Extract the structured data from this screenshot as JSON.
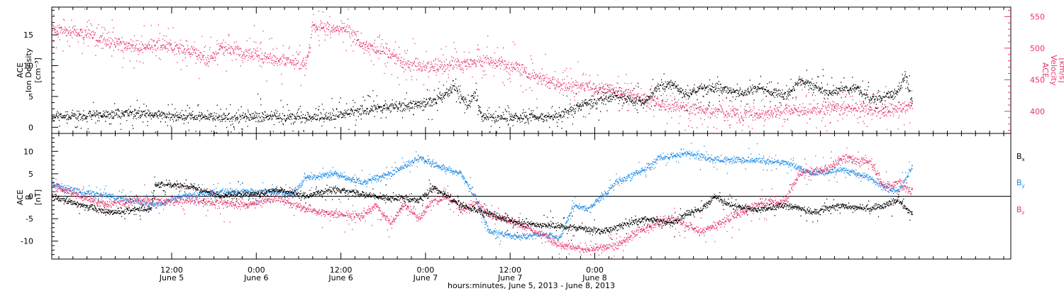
{
  "colors": {
    "black": "#000000",
    "pink": "#e8336b",
    "blue": "#1a8ae6"
  },
  "chart_data": [
    {
      "type": "scatter",
      "panel": "top",
      "ylabel_lines": [
        "ACE",
        "Ion Density",
        "[cm⁻³]"
      ],
      "y2label_lines": [
        "ACE",
        "Velocity",
        "[km/s]"
      ],
      "yticks": [
        "0",
        "5",
        "10",
        "15"
      ],
      "y2ticks": [
        "400",
        "450",
        "500",
        "550"
      ],
      "ylim": [
        -1,
        19.5
      ],
      "y2lim": [
        365,
        565
      ],
      "series": [
        {
          "key": "density",
          "color": "pink_left_axis_black",
          "axis": "left",
          "noise": 0.6,
          "scatter_prob": 0.25,
          "points": [
            [
              0,
              1.7
            ],
            [
              6,
              1.8
            ],
            [
              12,
              2.3
            ],
            [
              18,
              1.8
            ],
            [
              24,
              1.5
            ],
            [
              30,
              1.7
            ],
            [
              36,
              1.6
            ],
            [
              40,
              1.5
            ],
            [
              42,
              2.5
            ],
            [
              46,
              3.0
            ],
            [
              50,
              3.5
            ],
            [
              54,
              4.0
            ],
            [
              57,
              6.5
            ],
            [
              59,
              3.5
            ],
            [
              60,
              5.5
            ],
            [
              61,
              1.5
            ],
            [
              66,
              1.5
            ],
            [
              70,
              1.7
            ],
            [
              72,
              2.0
            ],
            [
              76,
              4.0
            ],
            [
              80,
              5.0
            ],
            [
              84,
              4.0
            ],
            [
              86,
              6.5
            ],
            [
              88,
              7.0
            ],
            [
              90,
              5.0
            ],
            [
              92,
              6.5
            ],
            [
              96,
              6.0
            ],
            [
              98,
              5.5
            ],
            [
              100,
              6.5
            ],
            [
              104,
              5.0
            ],
            [
              106,
              7.5
            ],
            [
              110,
              5.5
            ],
            [
              114,
              6.5
            ],
            [
              116,
              4.5
            ],
            [
              118,
              5.0
            ],
            [
              120,
              5.5
            ],
            [
              121,
              8.5
            ],
            [
              122,
              4.0
            ]
          ]
        },
        {
          "key": "velocity",
          "axis": "right",
          "noise": 8,
          "scatter_prob": 0.3,
          "points": [
            [
              0,
              530
            ],
            [
              4,
              525
            ],
            [
              8,
              510
            ],
            [
              12,
              500
            ],
            [
              15,
              505
            ],
            [
              20,
              495
            ],
            [
              22,
              480
            ],
            [
              24,
              500
            ],
            [
              28,
              490
            ],
            [
              32,
              480
            ],
            [
              36,
              475
            ],
            [
              37,
              535
            ],
            [
              40,
              530
            ],
            [
              42,
              530
            ],
            [
              44,
              505
            ],
            [
              48,
              490
            ],
            [
              50,
              475
            ],
            [
              54,
              470
            ],
            [
              58,
              475
            ],
            [
              62,
              480
            ],
            [
              66,
              470
            ],
            [
              68,
              455
            ],
            [
              72,
              440
            ],
            [
              76,
              440
            ],
            [
              80,
              430
            ],
            [
              84,
              420
            ],
            [
              86,
              410
            ],
            [
              90,
              405
            ],
            [
              94,
              400
            ],
            [
              98,
              395
            ],
            [
              100,
              395
            ],
            [
              104,
              400
            ],
            [
              106,
              400
            ],
            [
              110,
              405
            ],
            [
              114,
              405
            ],
            [
              118,
              400
            ],
            [
              122,
              410
            ]
          ]
        }
      ]
    },
    {
      "type": "scatter",
      "panel": "bottom",
      "ylabel_lines": [
        "ACE",
        "B",
        "[nT]"
      ],
      "yticks": [
        "-10",
        "-5",
        "0",
        "5",
        "10"
      ],
      "ylim": [
        -14,
        14
      ],
      "zero_line": true,
      "series": [
        {
          "name": "Bx",
          "label_main": "B",
          "label_sub": "x",
          "key": "bx",
          "noise": 0.6,
          "scatter_prob": 0.12,
          "points": [
            [
              0,
              0
            ],
            [
              4,
              -2
            ],
            [
              8,
              -3.5
            ],
            [
              12,
              -3.0
            ],
            [
              14,
              -3.0
            ],
            [
              14.5,
              2.5
            ],
            [
              18,
              2.5
            ],
            [
              20,
              2.0
            ],
            [
              24,
              0
            ],
            [
              28,
              0.5
            ],
            [
              30,
              0.5
            ],
            [
              32,
              1.5
            ],
            [
              36,
              0
            ],
            [
              40,
              1.5
            ],
            [
              44,
              0.5
            ],
            [
              48,
              -0.5
            ],
            [
              50,
              -0.5
            ],
            [
              52,
              -1
            ],
            [
              54,
              2.0
            ],
            [
              56,
              0
            ],
            [
              58,
              -2
            ],
            [
              60,
              -3
            ],
            [
              62,
              -4
            ],
            [
              66,
              -6
            ],
            [
              70,
              -6.5
            ],
            [
              74,
              -7
            ],
            [
              78,
              -8
            ],
            [
              80,
              -7
            ],
            [
              84,
              -5
            ],
            [
              86,
              -5.5
            ],
            [
              88,
              -6
            ],
            [
              90,
              -4
            ],
            [
              92,
              -3
            ],
            [
              94,
              0
            ],
            [
              96,
              -2
            ],
            [
              100,
              -3
            ],
            [
              104,
              -2
            ],
            [
              108,
              -3.5
            ],
            [
              112,
              -2
            ],
            [
              116,
              -3
            ],
            [
              118,
              -2
            ],
            [
              120,
              -1
            ],
            [
              122,
              -4
            ]
          ]
        },
        {
          "name": "By",
          "label_main": "B",
          "label_sub": "y",
          "key": "by",
          "noise": 0.6,
          "scatter_prob": 0.12,
          "points": [
            [
              0,
              2.5
            ],
            [
              4,
              1.0
            ],
            [
              8,
              0
            ],
            [
              12,
              -1
            ],
            [
              14,
              -2
            ],
            [
              16,
              -1.5
            ],
            [
              18,
              0
            ],
            [
              24,
              1
            ],
            [
              30,
              1.0
            ],
            [
              34,
              0.5
            ],
            [
              36,
              4
            ],
            [
              40,
              5
            ],
            [
              44,
              3
            ],
            [
              48,
              5
            ],
            [
              52,
              8.5
            ],
            [
              56,
              6
            ],
            [
              58,
              5
            ],
            [
              60,
              0
            ],
            [
              62,
              -8
            ],
            [
              66,
              -9
            ],
            [
              70,
              -8.5
            ],
            [
              72,
              -9.5
            ],
            [
              74,
              -2
            ],
            [
              76,
              -3
            ],
            [
              80,
              3
            ],
            [
              84,
              6
            ],
            [
              86,
              8.5
            ],
            [
              90,
              9.5
            ],
            [
              94,
              8
            ],
            [
              96,
              8
            ],
            [
              100,
              8
            ],
            [
              104,
              7.5
            ],
            [
              108,
              5
            ],
            [
              112,
              6
            ],
            [
              116,
              4
            ],
            [
              118,
              2
            ],
            [
              120,
              1
            ],
            [
              122,
              6.5
            ]
          ]
        },
        {
          "name": "Bz",
          "label_main": "B",
          "label_sub": "z",
          "key": "bz",
          "noise": 0.8,
          "scatter_prob": 0.15,
          "points": [
            [
              0,
              2.5
            ],
            [
              4,
              0
            ],
            [
              8,
              -2
            ],
            [
              12,
              -1
            ],
            [
              16,
              -1
            ],
            [
              20,
              -1
            ],
            [
              24,
              -1.5
            ],
            [
              28,
              -2
            ],
            [
              30,
              -1
            ],
            [
              32,
              -0.5
            ],
            [
              36,
              -3
            ],
            [
              40,
              -4
            ],
            [
              44,
              -4.5
            ],
            [
              46,
              -2
            ],
            [
              48,
              -6
            ],
            [
              50,
              -2
            ],
            [
              52,
              -5
            ],
            [
              54,
              -1
            ],
            [
              56,
              0
            ],
            [
              58,
              -3
            ],
            [
              60,
              -1.5
            ],
            [
              62,
              -4
            ],
            [
              66,
              -6
            ],
            [
              70,
              -9
            ],
            [
              72,
              -11
            ],
            [
              76,
              -12
            ],
            [
              80,
              -11
            ],
            [
              84,
              -7
            ],
            [
              88,
              -5
            ],
            [
              90,
              -6.5
            ],
            [
              92,
              -8
            ],
            [
              96,
              -5
            ],
            [
              100,
              -2
            ],
            [
              104,
              -1
            ],
            [
              106,
              5
            ],
            [
              110,
              6
            ],
            [
              112,
              8.5
            ],
            [
              116,
              7.5
            ],
            [
              118,
              2
            ],
            [
              120,
              3
            ],
            [
              122,
              1
            ]
          ]
        }
      ]
    }
  ],
  "x_axis": {
    "tick_top": [
      "12:00",
      "0:00",
      "12:00",
      "0:00",
      "12:00",
      "0:00"
    ],
    "tick_bottom": [
      "June 5",
      "June 6",
      "June 6",
      "June 7",
      "June 7",
      "June 8"
    ],
    "xlabel": "hours:minutes, June  5, 2013 - June  8, 2013",
    "hours_start": "June 4 19:00",
    "xlim_hours": [
      0,
      136
    ],
    "tick_hours": [
      17,
      29,
      41,
      53,
      65,
      77
    ]
  }
}
